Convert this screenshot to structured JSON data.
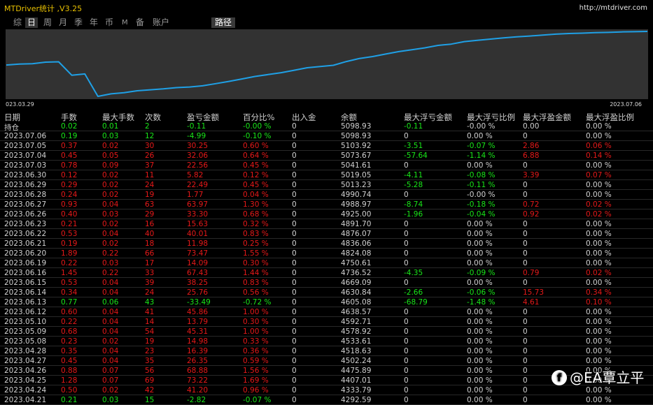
{
  "app": {
    "title": "MTDriver统计 ,V3.25",
    "url": "http://mtdriver.com"
  },
  "tabs": [
    "综",
    "日",
    "周",
    "月",
    "季",
    "年",
    "币",
    "M",
    "备",
    "账户",
    "路径"
  ],
  "active_tab": "日",
  "chart": {
    "start_date": "023.03.29",
    "end_date": "2023.07.06",
    "line_color": "#1fa0e6",
    "balance": [
      4232,
      4240,
      4242,
      4255,
      4258,
      4150,
      4160,
      3980,
      4000,
      4010,
      4025,
      4033,
      4040,
      4050,
      4055,
      4065,
      4082,
      4100,
      4120,
      4140,
      4155,
      4170,
      4190,
      4210,
      4220,
      4230,
      4260,
      4285,
      4300,
      4320,
      4340,
      4355,
      4370,
      4390,
      4400,
      4420,
      4430,
      4440,
      4450,
      4458,
      4465,
      4472,
      4480,
      4485,
      4488,
      4492,
      4494,
      4498,
      4500,
      4502
    ]
  },
  "colors": {
    "positive": "#19e619",
    "negative": "#e61919",
    "neutral": "#d2d2d2",
    "header": "#cfcfcf"
  },
  "table": {
    "headers": [
      "日期",
      "手数",
      "最大手数",
      "次数",
      "盈亏金额",
      "百分比%",
      "出入金",
      "余额",
      "最大浮亏金额",
      "最大浮亏比例",
      "最大浮盈金额",
      "最大浮盈比例"
    ],
    "rows": [
      {
        "s": "p",
        "c": [
          "持仓",
          "0.02",
          "0.01",
          "2",
          "-0.11",
          "-0.00 %",
          "0",
          "5098.93",
          "-0.11",
          "-0.00 %",
          "0.00",
          "0.00 %"
        ]
      },
      {
        "s": "p",
        "c": [
          "2023.07.06",
          "0.19",
          "0.03",
          "12",
          "-4.99",
          "-0.10 %",
          "0",
          "5098.93",
          "0",
          "0.00 %",
          "0",
          "0.00 %"
        ]
      },
      {
        "s": "n",
        "c": [
          "2023.07.05",
          "0.37",
          "0.02",
          "30",
          "30.25",
          "0.60 %",
          "0",
          "5103.92",
          "-3.51",
          "-0.07 %",
          "2.86",
          "0.06 %"
        ]
      },
      {
        "s": "n",
        "c": [
          "2023.07.04",
          "0.45",
          "0.05",
          "26",
          "32.06",
          "0.64 %",
          "0",
          "5073.67",
          "-57.64",
          "-1.14 %",
          "6.88",
          "0.14 %"
        ]
      },
      {
        "s": "n",
        "c": [
          "2023.07.03",
          "0.78",
          "0.09",
          "37",
          "22.56",
          "0.45 %",
          "0",
          "5041.61",
          "0",
          "0.00 %",
          "0",
          "0.00 %"
        ]
      },
      {
        "s": "n",
        "c": [
          "2023.06.30",
          "0.12",
          "0.02",
          "11",
          "5.82",
          "0.12 %",
          "0",
          "5019.05",
          "-4.11",
          "-0.08 %",
          "3.39",
          "0.07 %"
        ]
      },
      {
        "s": "n",
        "c": [
          "2023.06.29",
          "0.29",
          "0.02",
          "24",
          "22.49",
          "0.45 %",
          "0",
          "5013.23",
          "-5.28",
          "-0.11 %",
          "0",
          "0.00 %"
        ]
      },
      {
        "s": "n",
        "c": [
          "2023.06.28",
          "0.24",
          "0.02",
          "19",
          "1.77",
          "0.04 %",
          "0",
          "4990.74",
          "0",
          "-0.00 %",
          "0",
          "0.00 %"
        ]
      },
      {
        "s": "n",
        "c": [
          "2023.06.27",
          "0.93",
          "0.04",
          "63",
          "63.97",
          "1.30 %",
          "0",
          "4988.97",
          "-8.74",
          "-0.18 %",
          "0.72",
          "0.02 %"
        ]
      },
      {
        "s": "n",
        "c": [
          "2023.06.26",
          "0.40",
          "0.03",
          "29",
          "33.30",
          "0.68 %",
          "0",
          "4925.00",
          "-1.96",
          "-0.04 %",
          "0.92",
          "0.02 %"
        ]
      },
      {
        "s": "n",
        "c": [
          "2023.06.23",
          "0.21",
          "0.02",
          "16",
          "15.63",
          "0.32 %",
          "0",
          "4891.70",
          "0",
          "0.00 %",
          "0",
          "0.00 %"
        ]
      },
      {
        "s": "n",
        "c": [
          "2023.06.22",
          "0.53",
          "0.04",
          "40",
          "40.01",
          "0.83 %",
          "0",
          "4876.07",
          "0",
          "0.00 %",
          "0",
          "0.00 %"
        ]
      },
      {
        "s": "n",
        "c": [
          "2023.06.21",
          "0.19",
          "0.02",
          "18",
          "11.98",
          "0.25 %",
          "0",
          "4836.06",
          "0",
          "0.00 %",
          "0",
          "0.00 %"
        ]
      },
      {
        "s": "n",
        "c": [
          "2023.06.20",
          "1.89",
          "0.22",
          "66",
          "73.47",
          "1.55 %",
          "0",
          "4824.08",
          "0",
          "0.00 %",
          "0",
          "0.00 %"
        ]
      },
      {
        "s": "n",
        "c": [
          "2023.06.19",
          "0.22",
          "0.03",
          "17",
          "14.09",
          "0.30 %",
          "0",
          "4750.61",
          "0",
          "0.00 %",
          "0",
          "0.00 %"
        ]
      },
      {
        "s": "n",
        "c": [
          "2023.06.16",
          "1.45",
          "0.22",
          "33",
          "67.43",
          "1.44 %",
          "0",
          "4736.52",
          "-4.35",
          "-0.09 %",
          "0.79",
          "0.02 %"
        ]
      },
      {
        "s": "n",
        "c": [
          "2023.06.15",
          "0.53",
          "0.04",
          "39",
          "38.25",
          "0.83 %",
          "0",
          "4669.09",
          "0",
          "0.00 %",
          "0",
          "0.00 %"
        ]
      },
      {
        "s": "n",
        "c": [
          "2023.06.14",
          "0.34",
          "0.04",
          "24",
          "25.76",
          "0.56 %",
          "0",
          "4630.84",
          "-2.66",
          "-0.06 %",
          "15.73",
          "0.34 %"
        ]
      },
      {
        "s": "p",
        "c": [
          "2023.06.13",
          "0.77",
          "0.06",
          "43",
          "-33.49",
          "-0.72 %",
          "0",
          "4605.08",
          "-68.79",
          "-1.48 %",
          "4.61",
          "0.10 %"
        ]
      },
      {
        "s": "n",
        "c": [
          "2023.06.12",
          "0.60",
          "0.04",
          "41",
          "45.86",
          "1.00 %",
          "0",
          "4638.57",
          "0",
          "0.00 %",
          "0",
          "0.00 %"
        ]
      },
      {
        "s": "n",
        "c": [
          "2023.05.10",
          "0.22",
          "0.04",
          "14",
          "13.79",
          "0.30 %",
          "0",
          "4592.71",
          "0",
          "0.00 %",
          "0",
          "0.00 %"
        ]
      },
      {
        "s": "n",
        "c": [
          "2023.05.09",
          "0.68",
          "0.04",
          "54",
          "45.31",
          "1.00 %",
          "0",
          "4578.92",
          "0",
          "0.00 %",
          "0",
          "0.00 %"
        ]
      },
      {
        "s": "n",
        "c": [
          "2023.05.08",
          "0.23",
          "0.02",
          "19",
          "14.98",
          "0.33 %",
          "0",
          "4533.61",
          "0",
          "0.00 %",
          "0",
          "0.00 %"
        ]
      },
      {
        "s": "n",
        "c": [
          "2023.04.28",
          "0.35",
          "0.04",
          "23",
          "16.39",
          "0.36 %",
          "0",
          "4518.63",
          "0",
          "0.00 %",
          "0",
          "0.00 %"
        ]
      },
      {
        "s": "n",
        "c": [
          "2023.04.27",
          "0.45",
          "0.04",
          "35",
          "26.35",
          "0.59 %",
          "0",
          "4502.24",
          "0",
          "0.00 %",
          "0",
          "0.00 %"
        ]
      },
      {
        "s": "n",
        "c": [
          "2023.04.26",
          "0.88",
          "0.07",
          "56",
          "68.88",
          "1.56 %",
          "0",
          "4475.89",
          "0",
          "0.00 %",
          "0",
          "0.00 %"
        ]
      },
      {
        "s": "n",
        "c": [
          "2023.04.25",
          "1.28",
          "0.07",
          "69",
          "73.22",
          "1.69 %",
          "0",
          "4407.01",
          "0",
          "0.00 %",
          "0",
          "0.00 %"
        ]
      },
      {
        "s": "n",
        "c": [
          "2023.04.24",
          "0.50",
          "0.02",
          "42",
          "41.20",
          "0.96 %",
          "0",
          "4333.79",
          "0",
          "0.00 %",
          "0",
          "0.00 %"
        ]
      },
      {
        "s": "p",
        "c": [
          "2023.04.21",
          "0.21",
          "0.03",
          "15",
          "-2.82",
          "-0.07 %",
          "0",
          "4292.59",
          "0",
          "0.00 %",
          "0",
          "0.00 %"
        ]
      }
    ]
  },
  "watermark": {
    "icon": "facebook-icon",
    "text": "@EA覃立平"
  }
}
